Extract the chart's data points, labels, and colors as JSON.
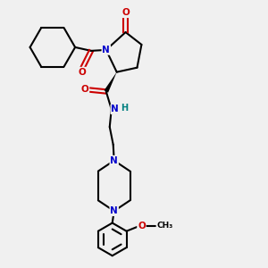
{
  "bg_color": "#f0f0f0",
  "atom_colors": {
    "C": "#000000",
    "N": "#0000cc",
    "O": "#cc0000",
    "H": "#008080"
  },
  "bond_color": "#000000",
  "bond_width": 1.5,
  "figsize": [
    3.0,
    3.0
  ],
  "dpi": 100
}
